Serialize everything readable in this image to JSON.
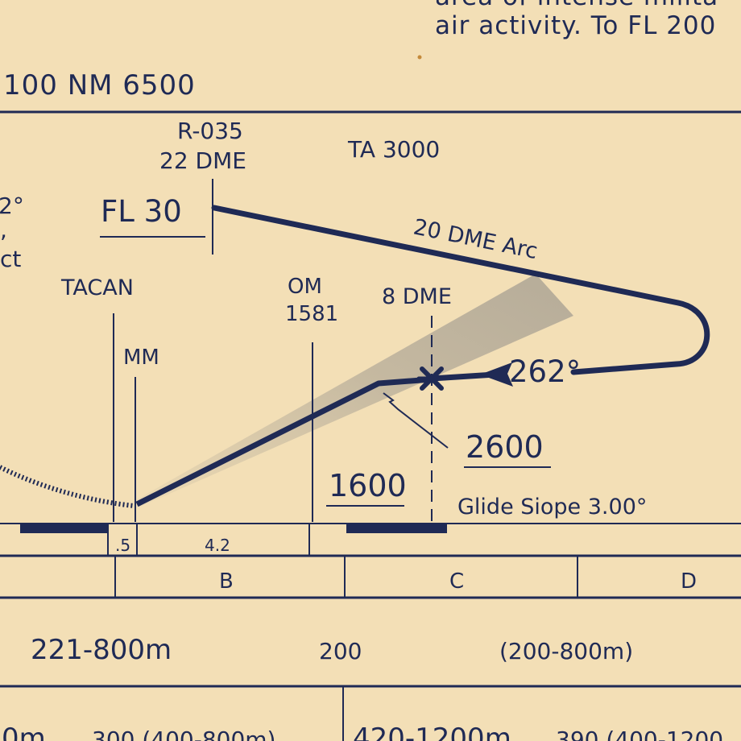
{
  "header": {
    "line1": "area of intense milita",
    "line2": "air activity. To FL 200",
    "msa": "100 NM 6500"
  },
  "profile": {
    "radial": "R-035",
    "dme22": "22 DME",
    "ta": "TA 3000",
    "left_frag1": "2°",
    "left_frag2": ",",
    "left_frag3": "ct",
    "fl": "FL 30",
    "arc": "20 DME Arc",
    "tacan": "TACAN",
    "om": "OM",
    "om_alt": "1581",
    "dme8": "8 DME",
    "mm": "MM",
    "course": "262°",
    "fix_alt": "2600",
    "om_cross": "1600",
    "glide": "Glide Siope 3.00°"
  },
  "distances": {
    "d1": ".5",
    "d2": "4.2"
  },
  "categories": {
    "b": "B",
    "c": "C",
    "d": "D"
  },
  "minima_row1": {
    "a": "221-800m",
    "b": "200",
    "c": "(200-800m)"
  },
  "minima_row2": {
    "a": "0m",
    "b": "300 (400-800m)",
    "c": "420-1200m",
    "d": "390 (400-1200"
  },
  "colors": {
    "paper": "#f3dfb6",
    "ink": "#1f2a55"
  }
}
